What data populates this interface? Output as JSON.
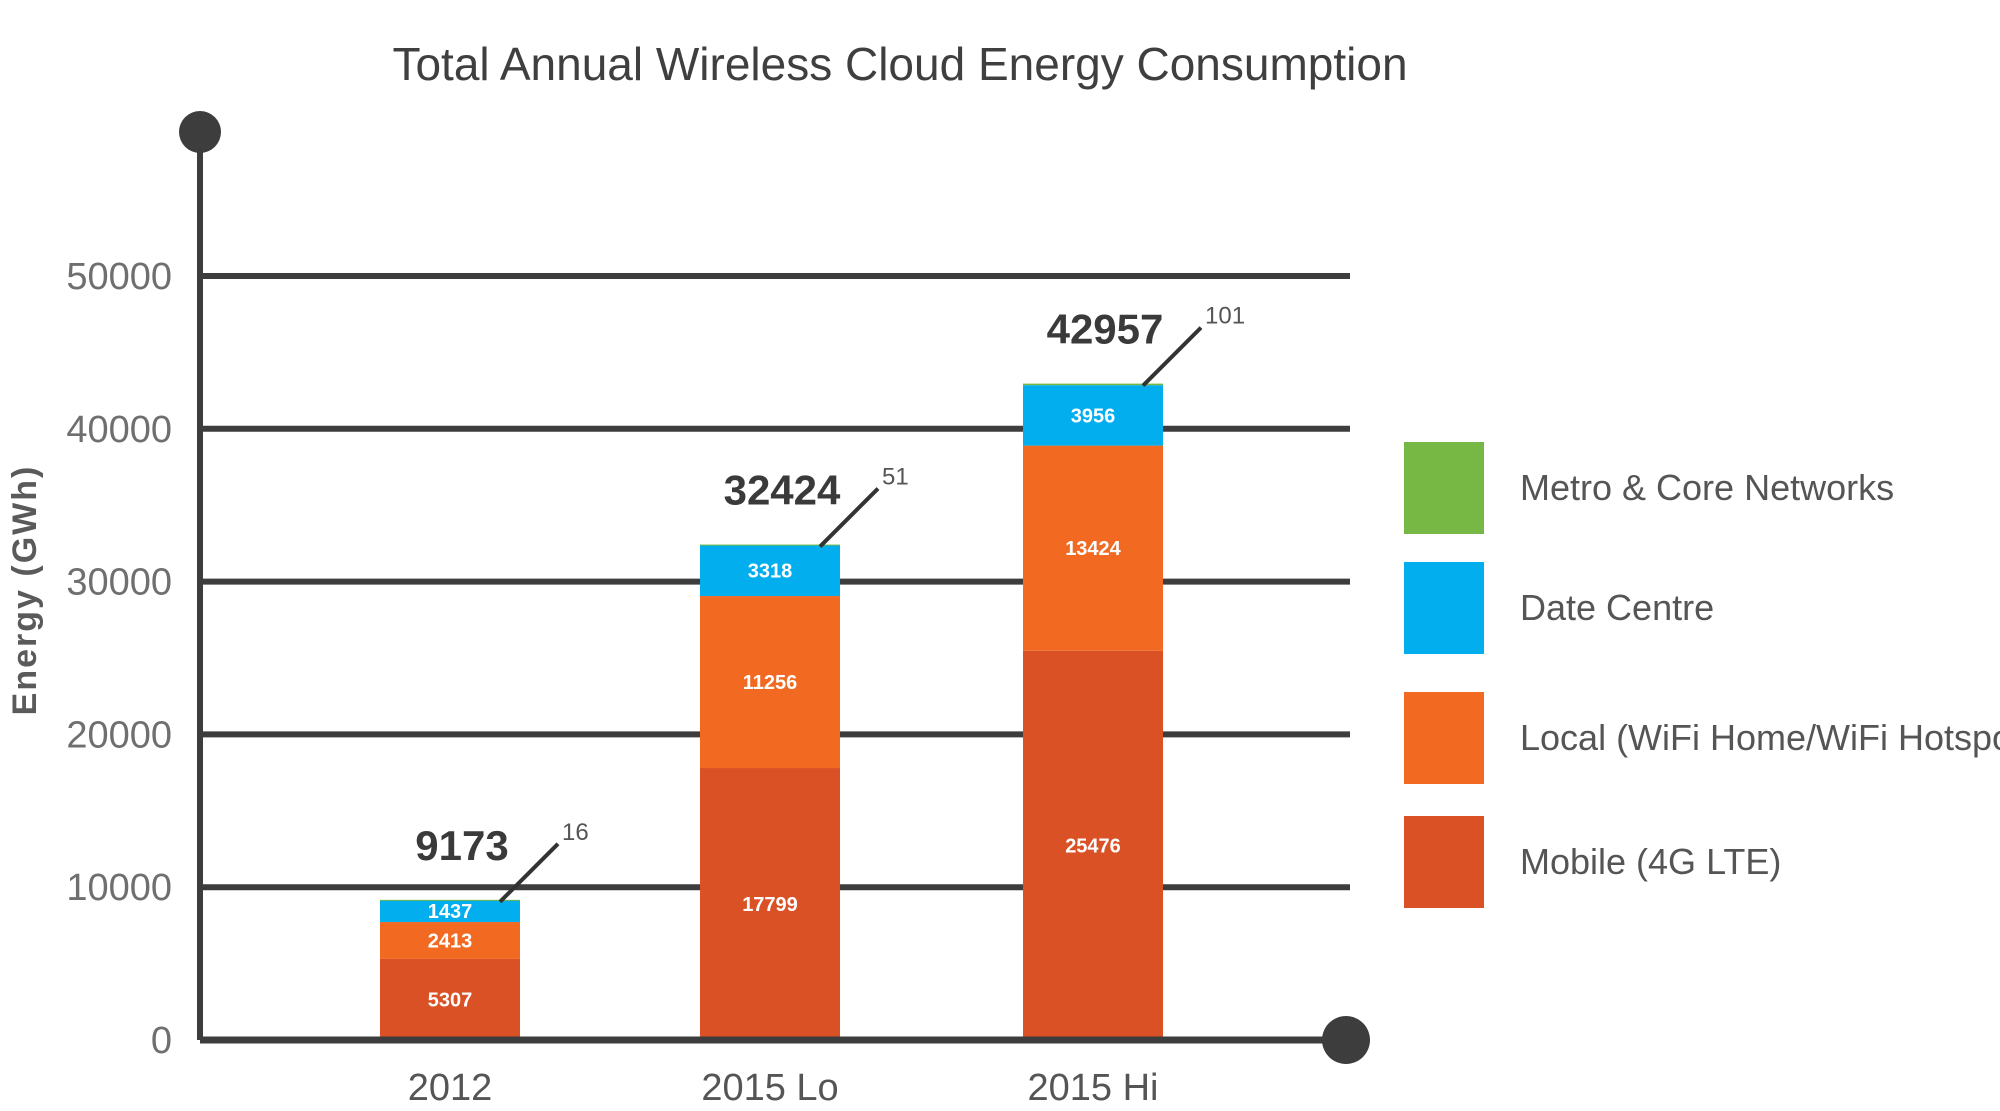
{
  "chart_data": {
    "type": "bar",
    "stacked": true,
    "title": "Total Annual Wireless Cloud Energy Consumption",
    "xlabel": "",
    "ylabel": "Energy (GWh)",
    "ylim": [
      0,
      50000
    ],
    "yticks": [
      0,
      10000,
      20000,
      30000,
      40000,
      50000
    ],
    "grid": true,
    "legend_position": "right",
    "categories": [
      "2012",
      "2015 Lo",
      "2015 Hi"
    ],
    "totals": [
      9173,
      32424,
      42957
    ],
    "series": [
      {
        "name": "Mobile (4G LTE)",
        "color": "#d95124",
        "values": [
          5307,
          17799,
          25476
        ]
      },
      {
        "name": "Local (WiFi Home/WiFi Hotspot)",
        "color": "#f26a22",
        "values": [
          2413,
          11256,
          13424
        ]
      },
      {
        "name": "Date Centre",
        "color": "#03aeef",
        "values": [
          1437,
          3318,
          3956
        ]
      },
      {
        "name": "Metro & Core Networks",
        "color": "#76b843",
        "values": [
          16,
          51,
          101
        ]
      }
    ],
    "legend_order": [
      "Metro & Core Networks",
      "Date Centre",
      "Local (WiFi Home/WiFi Hotspot)",
      "Mobile (4G LTE)"
    ]
  }
}
